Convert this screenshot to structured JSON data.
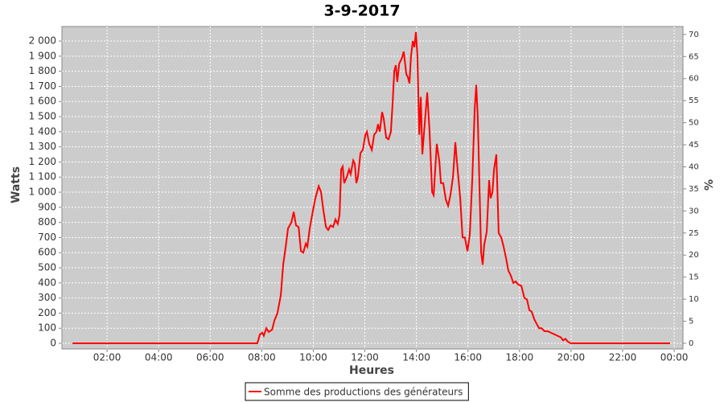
{
  "chart_data": {
    "type": "line",
    "title": "3-9-2017",
    "x_label": "Heures",
    "y_label": "Watts",
    "y2_label": "%",
    "x": [
      0.66,
      7.83,
      7.93,
      8.02,
      8.08,
      8.18,
      8.27,
      8.4,
      8.49,
      8.61,
      8.74,
      8.83,
      8.93,
      9.02,
      9.15,
      9.24,
      9.33,
      9.43,
      9.52,
      9.61,
      9.71,
      9.77,
      9.86,
      9.99,
      10.08,
      10.21,
      10.3,
      10.39,
      10.49,
      10.58,
      10.67,
      10.77,
      10.86,
      10.95,
      11.02,
      11.08,
      11.14,
      11.2,
      11.3,
      11.39,
      11.45,
      11.55,
      11.61,
      11.67,
      11.73,
      11.83,
      11.92,
      12.02,
      12.08,
      12.17,
      12.27,
      12.36,
      12.45,
      12.51,
      12.58,
      12.67,
      12.73,
      12.83,
      12.92,
      13.01,
      13.08,
      13.14,
      13.2,
      13.26,
      13.33,
      13.42,
      13.51,
      13.61,
      13.67,
      13.73,
      13.79,
      13.86,
      13.92,
      13.98,
      14.04,
      14.11,
      14.17,
      14.23,
      14.29,
      14.42,
      14.51,
      14.61,
      14.67,
      14.73,
      14.79,
      14.89,
      14.95,
      15.04,
      15.14,
      15.23,
      15.32,
      15.42,
      15.51,
      15.6,
      15.7,
      15.79,
      15.88,
      15.98,
      16.07,
      16.17,
      16.26,
      16.32,
      16.38,
      16.45,
      16.51,
      16.57,
      16.63,
      16.73,
      16.82,
      16.88,
      16.95,
      17.01,
      17.1,
      17.19,
      17.29,
      17.38,
      17.48,
      17.57,
      17.66,
      17.76,
      17.85,
      17.94,
      18.07,
      18.19,
      18.29,
      18.38,
      18.47,
      18.57,
      18.66,
      18.76,
      18.85,
      18.97,
      19.1,
      19.22,
      19.35,
      19.47,
      19.6,
      19.69,
      19.78,
      19.88,
      20.0,
      23.84
    ],
    "series": [
      {
        "name": "Somme des productions des  générateurs",
        "color": "#ff0000",
        "values": [
          0,
          0,
          60,
          70,
          50,
          100,
          75,
          90,
          150,
          200,
          320,
          520,
          640,
          760,
          800,
          870,
          780,
          770,
          610,
          600,
          660,
          640,
          760,
          880,
          960,
          1040,
          1000,
          880,
          770,
          750,
          780,
          770,
          820,
          790,
          850,
          1150,
          1170,
          1060,
          1100,
          1150,
          1120,
          1210,
          1190,
          1060,
          1100,
          1260,
          1280,
          1380,
          1400,
          1320,
          1280,
          1380,
          1400,
          1450,
          1400,
          1530,
          1490,
          1360,
          1350,
          1400,
          1600,
          1800,
          1840,
          1730,
          1850,
          1880,
          1930,
          1780,
          1760,
          1720,
          1900,
          2000,
          1960,
          2060,
          1900,
          1380,
          1630,
          1250,
          1380,
          1660,
          1400,
          1000,
          980,
          1150,
          1320,
          1200,
          1060,
          1060,
          950,
          910,
          980,
          1100,
          1330,
          1150,
          960,
          700,
          700,
          610,
          720,
          1100,
          1550,
          1710,
          1500,
          1000,
          600,
          520,
          650,
          740,
          1080,
          960,
          1000,
          1150,
          1250,
          730,
          700,
          640,
          560,
          480,
          450,
          400,
          410,
          390,
          380,
          300,
          290,
          220,
          210,
          160,
          130,
          100,
          100,
          80,
          80,
          70,
          60,
          50,
          40,
          20,
          30,
          10,
          0,
          0
        ]
      }
    ],
    "xlim": [
      0.25,
      24.34
    ],
    "xticks": [
      {
        "value": 2,
        "label": "02:00"
      },
      {
        "value": 4,
        "label": "04:00"
      },
      {
        "value": 6,
        "label": "06:00"
      },
      {
        "value": 8,
        "label": "08:00"
      },
      {
        "value": 10,
        "label": "10:00"
      },
      {
        "value": 12,
        "label": "12:00"
      },
      {
        "value": 14,
        "label": "14:00"
      },
      {
        "value": 16,
        "label": "16:00"
      },
      {
        "value": 18,
        "label": "18:00"
      },
      {
        "value": 20,
        "label": "20:00"
      },
      {
        "value": 22,
        "label": "22:00"
      },
      {
        "value": 24,
        "label": "00:00"
      }
    ],
    "ylim": [
      -37,
      2096
    ],
    "yticks": [
      0,
      100,
      200,
      300,
      400,
      500,
      600,
      700,
      800,
      900,
      {
        "value": 1000,
        "label": "1 000"
      },
      {
        "value": 1100,
        "label": "1 100"
      },
      {
        "value": 1200,
        "label": "1 200"
      },
      {
        "value": 1300,
        "label": "1 300"
      },
      {
        "value": 1400,
        "label": "1 400"
      },
      {
        "value": 1500,
        "label": "1 500"
      },
      {
        "value": 1600,
        "label": "1 600"
      },
      {
        "value": 1700,
        "label": "1 700"
      },
      {
        "value": 1800,
        "label": "1 800"
      },
      {
        "value": 1900,
        "label": "1 900"
      },
      {
        "value": 2000,
        "label": "2 000"
      }
    ],
    "y2lim": [
      -1.28,
      71.8
    ],
    "y2ticks": [
      0,
      5,
      10,
      15,
      20,
      25,
      30,
      35,
      40,
      45,
      50,
      55,
      60,
      65,
      70
    ],
    "grid": true,
    "background": "#cccccc",
    "legend": "bottom"
  }
}
